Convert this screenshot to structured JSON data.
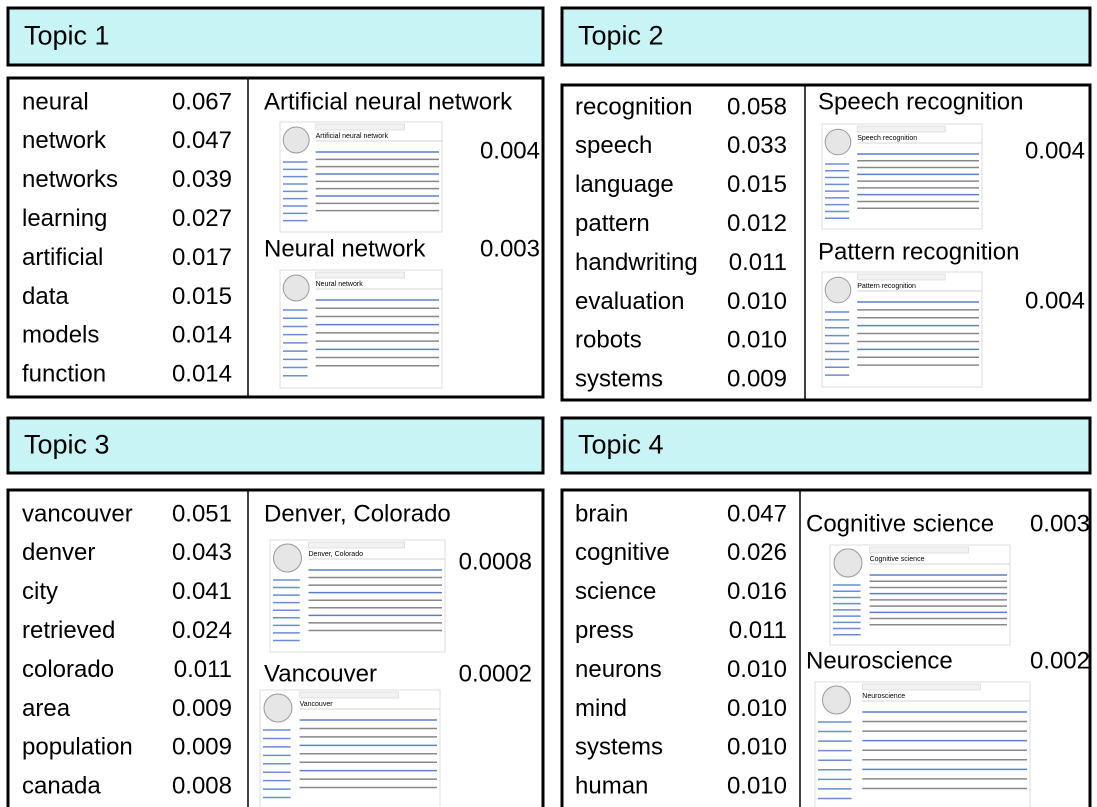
{
  "topics": [
    {
      "title": "Topic 1",
      "words": [
        {
          "word": "neural",
          "prob": "0.067"
        },
        {
          "word": "network",
          "prob": "0.047"
        },
        {
          "word": "networks",
          "prob": "0.039"
        },
        {
          "word": "learning",
          "prob": "0.027"
        },
        {
          "word": "artificial",
          "prob": "0.017"
        },
        {
          "word": "data",
          "prob": "0.015"
        },
        {
          "word": "models",
          "prob": "0.014"
        },
        {
          "word": "function",
          "prob": "0.014"
        }
      ],
      "documents": [
        {
          "title": "Artificial neural network",
          "prob": "0.004"
        },
        {
          "title": "Neural network",
          "prob": "0.003"
        }
      ]
    },
    {
      "title": "Topic 2",
      "words": [
        {
          "word": "recognition",
          "prob": "0.058"
        },
        {
          "word": "speech",
          "prob": "0.033"
        },
        {
          "word": "language",
          "prob": "0.015"
        },
        {
          "word": "pattern",
          "prob": "0.012"
        },
        {
          "word": "handwriting",
          "prob": "0.011"
        },
        {
          "word": "evaluation",
          "prob": "0.010"
        },
        {
          "word": "robots",
          "prob": "0.010"
        },
        {
          "word": "systems",
          "prob": "0.009"
        }
      ],
      "documents": [
        {
          "title": "Speech recognition",
          "prob": "0.004"
        },
        {
          "title": "Pattern recognition",
          "prob": "0.004"
        }
      ]
    },
    {
      "title": "Topic 3",
      "words": [
        {
          "word": "vancouver",
          "prob": "0.051"
        },
        {
          "word": "denver",
          "prob": "0.043"
        },
        {
          "word": "city",
          "prob": "0.041"
        },
        {
          "word": "retrieved",
          "prob": "0.024"
        },
        {
          "word": "colorado",
          "prob": "0.011"
        },
        {
          "word": "area",
          "prob": "0.009"
        },
        {
          "word": "population",
          "prob": "0.009"
        },
        {
          "word": "canada",
          "prob": "0.008"
        }
      ],
      "documents": [
        {
          "title": "Denver, Colorado",
          "prob": "0.0008"
        },
        {
          "title": "Vancouver",
          "prob": "0.0002"
        }
      ]
    },
    {
      "title": "Topic 4",
      "words": [
        {
          "word": "brain",
          "prob": "0.047"
        },
        {
          "word": "cognitive",
          "prob": "0.026"
        },
        {
          "word": "science",
          "prob": "0.016"
        },
        {
          "word": "press",
          "prob": "0.011"
        },
        {
          "word": "neurons",
          "prob": "0.010"
        },
        {
          "word": "mind",
          "prob": "0.010"
        },
        {
          "word": "systems",
          "prob": "0.010"
        },
        {
          "word": "human",
          "prob": "0.010"
        }
      ],
      "documents": [
        {
          "title": "Cognitive science",
          "prob": "0.003"
        },
        {
          "title": "Neuroscience",
          "prob": "0.002"
        }
      ]
    }
  ]
}
